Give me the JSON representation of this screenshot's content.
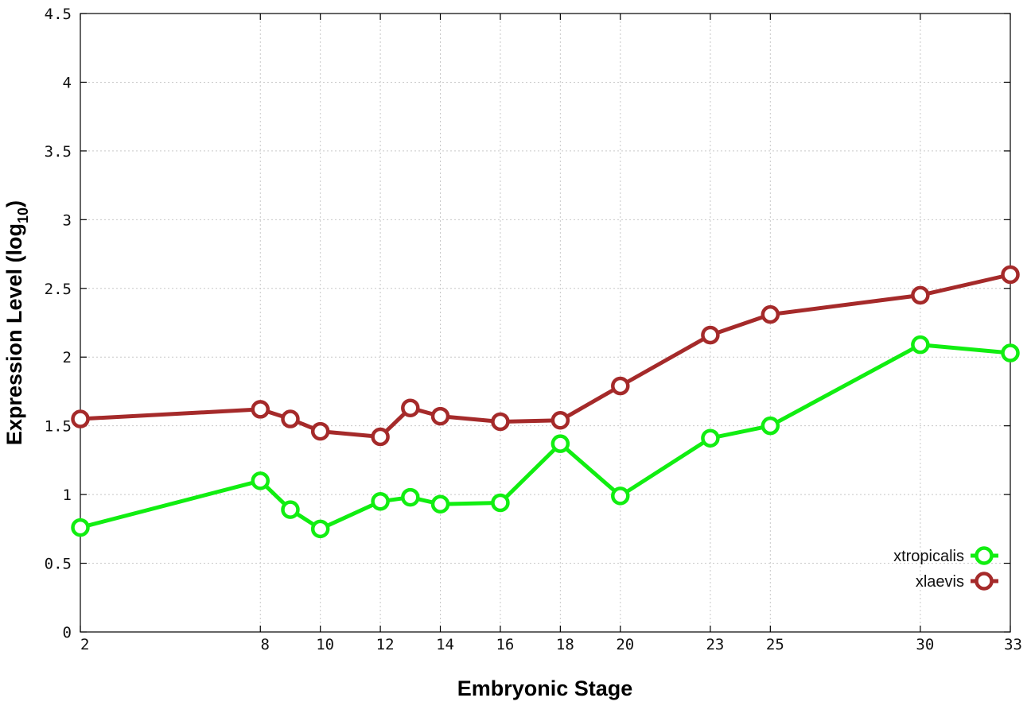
{
  "chart_data": {
    "type": "line",
    "xlabel": "Embryonic Stage",
    "ylabel": {
      "main": "Expression Level (log",
      "sub": "10",
      "end": ")"
    },
    "x": [
      2,
      8,
      9,
      10,
      12,
      13,
      14,
      16,
      18,
      20,
      23,
      25,
      30,
      33
    ],
    "x_tick_labels": [
      "2",
      "8",
      "10",
      "12",
      "14",
      "16",
      "18",
      "20",
      "23",
      "25",
      "30",
      "33"
    ],
    "y_tick_labels": [
      "0",
      "0.5",
      "1",
      "1.5",
      "2",
      "2.5",
      "3",
      "3.5",
      "4",
      "4.5"
    ],
    "xlim": [
      2,
      33
    ],
    "ylim": [
      0,
      4.5
    ],
    "grid": true,
    "legend_position": "bottom-right",
    "series": [
      {
        "name": "xtropicalis",
        "color": "#11ee11",
        "values": [
          0.76,
          1.1,
          0.89,
          0.75,
          0.95,
          0.98,
          0.93,
          0.94,
          1.37,
          0.99,
          1.41,
          1.5,
          2.09,
          2.03
        ]
      },
      {
        "name": "xlaevis",
        "color": "#a52a2a",
        "values": [
          1.55,
          1.62,
          1.55,
          1.46,
          1.42,
          1.63,
          1.57,
          1.53,
          1.54,
          1.79,
          2.16,
          2.31,
          2.45,
          2.6
        ]
      }
    ]
  }
}
